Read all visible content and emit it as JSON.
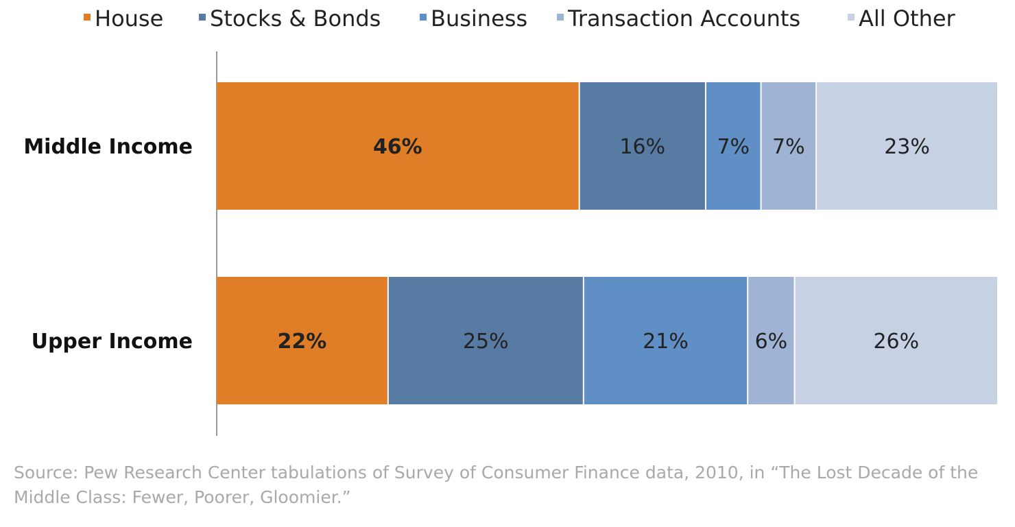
{
  "chart_data": {
    "type": "bar",
    "orientation": "horizontal",
    "stacked": true,
    "categories": [
      "Middle Income",
      "Upper Income"
    ],
    "series": [
      {
        "name": "House",
        "values": [
          46,
          22
        ],
        "color": "#e07e27"
      },
      {
        "name": "Stocks & Bonds",
        "values": [
          16,
          25
        ],
        "color": "#577ba3"
      },
      {
        "name": "Business",
        "values": [
          7,
          21
        ],
        "color": "#5f8fc4"
      },
      {
        "name": "Transaction Accounts",
        "values": [
          7,
          6
        ],
        "color": "#9fb3d4"
      },
      {
        "name": "All Other",
        "values": [
          23,
          26
        ],
        "color": "#c6d1e4"
      }
    ],
    "data_labels": [
      [
        "46%",
        "16%",
        "7%",
        "7%",
        "23%"
      ],
      [
        "22%",
        "25%",
        "21%",
        "6%",
        "26%"
      ]
    ],
    "unit": "%",
    "legend_position": "top",
    "grid": false
  },
  "source": "Source: Pew Research Center tabulations of Survey of Consumer Finance data, 2010, in “The Lost Decade of the Middle Class: Fewer, Poorer, Gloomier.”"
}
